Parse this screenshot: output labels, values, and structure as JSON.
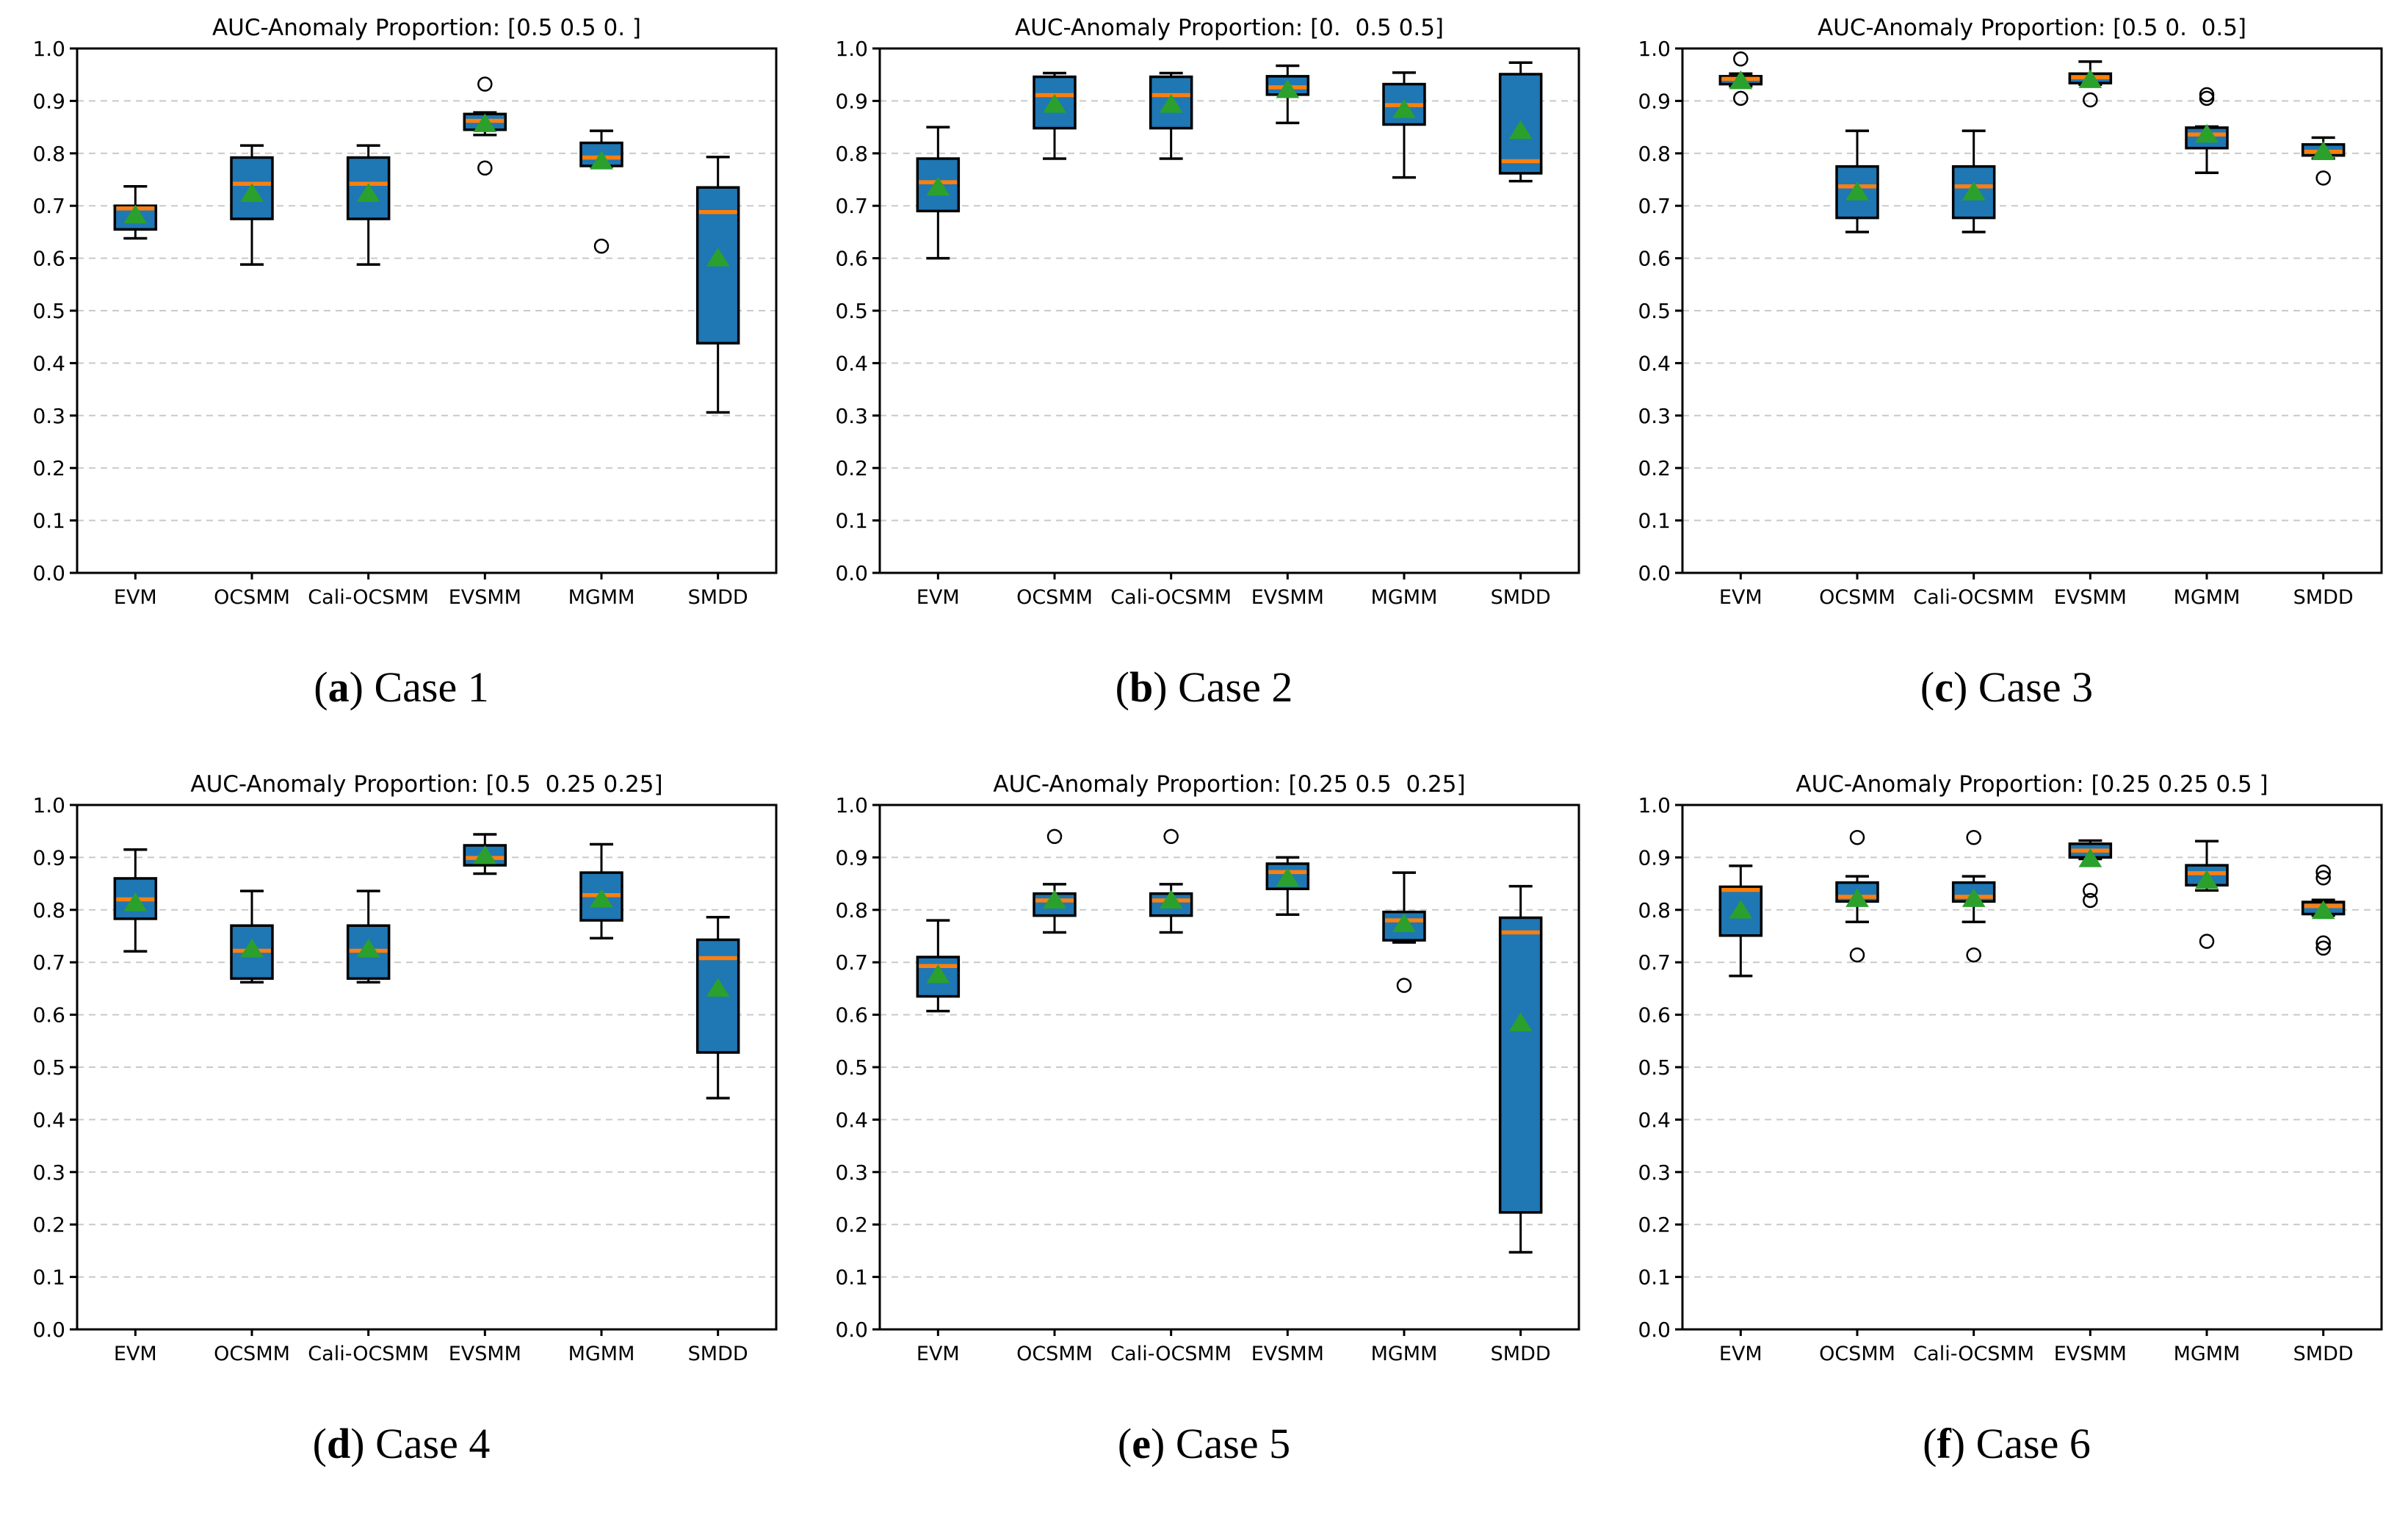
{
  "colors": {
    "box_fill": "#1f77b4",
    "median": "#ff7f0e",
    "mean": "#2ca02c",
    "edge": "#000000",
    "grid": "#c9c9c9",
    "text": "#000000"
  },
  "caption_format": {
    "open": "(",
    "close": ")"
  },
  "chart_data": [
    {
      "type": "boxplot",
      "title": "AUC-Anomaly Proportion: [0.5 0.5 0. ]",
      "caption": {
        "letter": "a",
        "text": "Case 1"
      },
      "categories": [
        "EVM",
        "OCSMM",
        "Cali-OCSMM",
        "EVSMM",
        "MGMM",
        "SMDD"
      ],
      "ylim": [
        0.0,
        1.0
      ],
      "ytick_labels": [
        "0.0",
        "0.1",
        "0.2",
        "0.3",
        "0.4",
        "0.5",
        "0.6",
        "0.7",
        "0.8",
        "0.9",
        "1.0"
      ],
      "grid": "dashed-horizontal",
      "boxes": [
        {
          "method": "EVM",
          "whislo": 0.638,
          "q1": 0.655,
          "med": 0.695,
          "q3": 0.7,
          "whishi": 0.737,
          "mean": 0.684,
          "outliers": []
        },
        {
          "method": "OCSMM",
          "whislo": 0.588,
          "q1": 0.675,
          "med": 0.742,
          "q3": 0.792,
          "whishi": 0.815,
          "mean": 0.725,
          "outliers": []
        },
        {
          "method": "Cali-OCSMM",
          "whislo": 0.588,
          "q1": 0.675,
          "med": 0.742,
          "q3": 0.792,
          "whishi": 0.815,
          "mean": 0.725,
          "outliers": []
        },
        {
          "method": "EVSMM",
          "whislo": 0.835,
          "q1": 0.845,
          "med": 0.862,
          "q3": 0.875,
          "whishi": 0.878,
          "mean": 0.858,
          "outliers": [
            0.932,
            0.772
          ]
        },
        {
          "method": "MGMM",
          "whislo": 0.775,
          "q1": 0.776,
          "med": 0.792,
          "q3": 0.82,
          "whishi": 0.843,
          "mean": 0.787,
          "outliers": [
            0.623
          ]
        },
        {
          "method": "SMDD",
          "whislo": 0.306,
          "q1": 0.438,
          "med": 0.688,
          "q3": 0.735,
          "whishi": 0.793,
          "mean": 0.602,
          "outliers": []
        }
      ]
    },
    {
      "type": "boxplot",
      "title": "AUC-Anomaly Proportion: [0.  0.5 0.5]",
      "caption": {
        "letter": "b",
        "text": "Case 2"
      },
      "categories": [
        "EVM",
        "OCSMM",
        "Cali-OCSMM",
        "EVSMM",
        "MGMM",
        "SMDD"
      ],
      "ylim": [
        0.0,
        1.0
      ],
      "ytick_labels": [
        "0.0",
        "0.1",
        "0.2",
        "0.3",
        "0.4",
        "0.5",
        "0.6",
        "0.7",
        "0.8",
        "0.9",
        "1.0"
      ],
      "grid": "dashed-horizontal",
      "boxes": [
        {
          "method": "EVM",
          "whislo": 0.6,
          "q1": 0.69,
          "med": 0.745,
          "q3": 0.79,
          "whishi": 0.85,
          "mean": 0.737,
          "outliers": []
        },
        {
          "method": "OCSMM",
          "whislo": 0.79,
          "q1": 0.848,
          "med": 0.911,
          "q3": 0.946,
          "whishi": 0.953,
          "mean": 0.895,
          "outliers": []
        },
        {
          "method": "Cali-OCSMM",
          "whislo": 0.79,
          "q1": 0.848,
          "med": 0.911,
          "q3": 0.946,
          "whishi": 0.953,
          "mean": 0.895,
          "outliers": []
        },
        {
          "method": "EVSMM",
          "whislo": 0.858,
          "q1": 0.912,
          "med": 0.926,
          "q3": 0.947,
          "whishi": 0.967,
          "mean": 0.923,
          "outliers": []
        },
        {
          "method": "MGMM",
          "whislo": 0.754,
          "q1": 0.855,
          "med": 0.892,
          "q3": 0.932,
          "whishi": 0.954,
          "mean": 0.885,
          "outliers": []
        },
        {
          "method": "SMDD",
          "whislo": 0.747,
          "q1": 0.762,
          "med": 0.785,
          "q3": 0.951,
          "whishi": 0.973,
          "mean": 0.845,
          "outliers": []
        }
      ]
    },
    {
      "type": "boxplot",
      "title": "AUC-Anomaly Proportion: [0.5 0.  0.5]",
      "caption": {
        "letter": "c",
        "text": "Case 3"
      },
      "categories": [
        "EVM",
        "OCSMM",
        "Cali-OCSMM",
        "EVSMM",
        "MGMM",
        "SMDD"
      ],
      "ylim": [
        0.0,
        1.0
      ],
      "ytick_labels": [
        "0.0",
        "0.1",
        "0.2",
        "0.3",
        "0.4",
        "0.5",
        "0.6",
        "0.7",
        "0.8",
        "0.9",
        "1.0"
      ],
      "grid": "dashed-horizontal",
      "boxes": [
        {
          "method": "EVM",
          "whislo": 0.928,
          "q1": 0.932,
          "med": 0.942,
          "q3": 0.947,
          "whishi": 0.952,
          "mean": 0.94,
          "outliers": [
            0.98,
            0.905
          ]
        },
        {
          "method": "OCSMM",
          "whislo": 0.65,
          "q1": 0.677,
          "med": 0.737,
          "q3": 0.775,
          "whishi": 0.843,
          "mean": 0.728,
          "outliers": []
        },
        {
          "method": "Cali-OCSMM",
          "whislo": 0.65,
          "q1": 0.677,
          "med": 0.737,
          "q3": 0.775,
          "whishi": 0.843,
          "mean": 0.728,
          "outliers": []
        },
        {
          "method": "EVSMM",
          "whislo": 0.931,
          "q1": 0.934,
          "med": 0.945,
          "q3": 0.952,
          "whishi": 0.975,
          "mean": 0.942,
          "outliers": [
            0.902
          ]
        },
        {
          "method": "MGMM",
          "whislo": 0.763,
          "q1": 0.81,
          "med": 0.836,
          "q3": 0.849,
          "whishi": 0.851,
          "mean": 0.838,
          "outliers": [
            0.912,
            0.905
          ]
        },
        {
          "method": "SMDD",
          "whislo": 0.79,
          "q1": 0.796,
          "med": 0.803,
          "q3": 0.817,
          "whishi": 0.83,
          "mean": 0.805,
          "outliers": [
            0.753
          ]
        }
      ]
    },
    {
      "type": "boxplot",
      "title": "AUC-Anomaly Proportion: [0.5  0.25 0.25]",
      "caption": {
        "letter": "d",
        "text": "Case 4"
      },
      "categories": [
        "EVM",
        "OCSMM",
        "Cali-OCSMM",
        "EVSMM",
        "MGMM",
        "SMDD"
      ],
      "ylim": [
        0.0,
        1.0
      ],
      "ytick_labels": [
        "0.0",
        "0.1",
        "0.2",
        "0.3",
        "0.4",
        "0.5",
        "0.6",
        "0.7",
        "0.8",
        "0.9",
        "1.0"
      ],
      "grid": "dashed-horizontal",
      "boxes": [
        {
          "method": "EVM",
          "whislo": 0.721,
          "q1": 0.783,
          "med": 0.82,
          "q3": 0.86,
          "whishi": 0.915,
          "mean": 0.815,
          "outliers": []
        },
        {
          "method": "OCSMM",
          "whislo": 0.662,
          "q1": 0.669,
          "med": 0.722,
          "q3": 0.77,
          "whishi": 0.836,
          "mean": 0.727,
          "outliers": []
        },
        {
          "method": "Cali-OCSMM",
          "whislo": 0.662,
          "q1": 0.669,
          "med": 0.722,
          "q3": 0.77,
          "whishi": 0.836,
          "mean": 0.727,
          "outliers": []
        },
        {
          "method": "EVSMM",
          "whislo": 0.869,
          "q1": 0.885,
          "med": 0.899,
          "q3": 0.923,
          "whishi": 0.944,
          "mean": 0.905,
          "outliers": []
        },
        {
          "method": "MGMM",
          "whislo": 0.746,
          "q1": 0.78,
          "med": 0.828,
          "q3": 0.871,
          "whishi": 0.925,
          "mean": 0.822,
          "outliers": []
        },
        {
          "method": "SMDD",
          "whislo": 0.441,
          "q1": 0.528,
          "med": 0.708,
          "q3": 0.743,
          "whishi": 0.786,
          "mean": 0.652,
          "outliers": []
        }
      ]
    },
    {
      "type": "boxplot",
      "title": "AUC-Anomaly Proportion: [0.25 0.5  0.25]",
      "caption": {
        "letter": "e",
        "text": "Case 5"
      },
      "categories": [
        "EVM",
        "OCSMM",
        "Cali-OCSMM",
        "EVSMM",
        "MGMM",
        "SMDD"
      ],
      "ylim": [
        0.0,
        1.0
      ],
      "ytick_labels": [
        "0.0",
        "0.1",
        "0.2",
        "0.3",
        "0.4",
        "0.5",
        "0.6",
        "0.7",
        "0.8",
        "0.9",
        "1.0"
      ],
      "grid": "dashed-horizontal",
      "boxes": [
        {
          "method": "EVM",
          "whislo": 0.607,
          "q1": 0.635,
          "med": 0.693,
          "q3": 0.71,
          "whishi": 0.78,
          "mean": 0.678,
          "outliers": []
        },
        {
          "method": "OCSMM",
          "whislo": 0.757,
          "q1": 0.789,
          "med": 0.818,
          "q3": 0.831,
          "whishi": 0.849,
          "mean": 0.82,
          "outliers": [
            0.94
          ]
        },
        {
          "method": "Cali-OCSMM",
          "whislo": 0.757,
          "q1": 0.789,
          "med": 0.818,
          "q3": 0.831,
          "whishi": 0.849,
          "mean": 0.82,
          "outliers": [
            0.94
          ]
        },
        {
          "method": "EVSMM",
          "whislo": 0.791,
          "q1": 0.84,
          "med": 0.872,
          "q3": 0.888,
          "whishi": 0.9,
          "mean": 0.862,
          "outliers": []
        },
        {
          "method": "MGMM",
          "whislo": 0.738,
          "q1": 0.742,
          "med": 0.78,
          "q3": 0.796,
          "whishi": 0.871,
          "mean": 0.775,
          "outliers": [
            0.656
          ]
        },
        {
          "method": "SMDD",
          "whislo": 0.147,
          "q1": 0.223,
          "med": 0.757,
          "q3": 0.785,
          "whishi": 0.845,
          "mean": 0.586,
          "outliers": []
        }
      ]
    },
    {
      "type": "boxplot",
      "title": "AUC-Anomaly Proportion: [0.25 0.25 0.5 ]",
      "caption": {
        "letter": "f",
        "text": "Case 6"
      },
      "categories": [
        "EVM",
        "OCSMM",
        "Cali-OCSMM",
        "EVSMM",
        "MGMM",
        "SMDD"
      ],
      "ylim": [
        0.0,
        1.0
      ],
      "ytick_labels": [
        "0.0",
        "0.1",
        "0.2",
        "0.3",
        "0.4",
        "0.5",
        "0.6",
        "0.7",
        "0.8",
        "0.9",
        "1.0"
      ],
      "grid": "dashed-horizontal",
      "boxes": [
        {
          "method": "EVM",
          "whislo": 0.674,
          "q1": 0.751,
          "med": 0.838,
          "q3": 0.844,
          "whishi": 0.884,
          "mean": 0.801,
          "outliers": []
        },
        {
          "method": "OCSMM",
          "whislo": 0.777,
          "q1": 0.816,
          "med": 0.825,
          "q3": 0.852,
          "whishi": 0.864,
          "mean": 0.823,
          "outliers": [
            0.938,
            0.714
          ]
        },
        {
          "method": "Cali-OCSMM",
          "whislo": 0.777,
          "q1": 0.816,
          "med": 0.825,
          "q3": 0.852,
          "whishi": 0.864,
          "mean": 0.823,
          "outliers": [
            0.938,
            0.714
          ]
        },
        {
          "method": "EVSMM",
          "whislo": 0.897,
          "q1": 0.9,
          "med": 0.913,
          "q3": 0.926,
          "whishi": 0.932,
          "mean": 0.899,
          "outliers": [
            0.837,
            0.818
          ]
        },
        {
          "method": "MGMM",
          "whislo": 0.837,
          "q1": 0.847,
          "med": 0.87,
          "q3": 0.885,
          "whishi": 0.931,
          "mean": 0.858,
          "outliers": [
            0.74
          ]
        },
        {
          "method": "SMDD",
          "whislo": 0.789,
          "q1": 0.792,
          "med": 0.807,
          "q3": 0.815,
          "whishi": 0.819,
          "mean": 0.8,
          "outliers": [
            0.872,
            0.861,
            0.737,
            0.727
          ]
        }
      ]
    }
  ]
}
